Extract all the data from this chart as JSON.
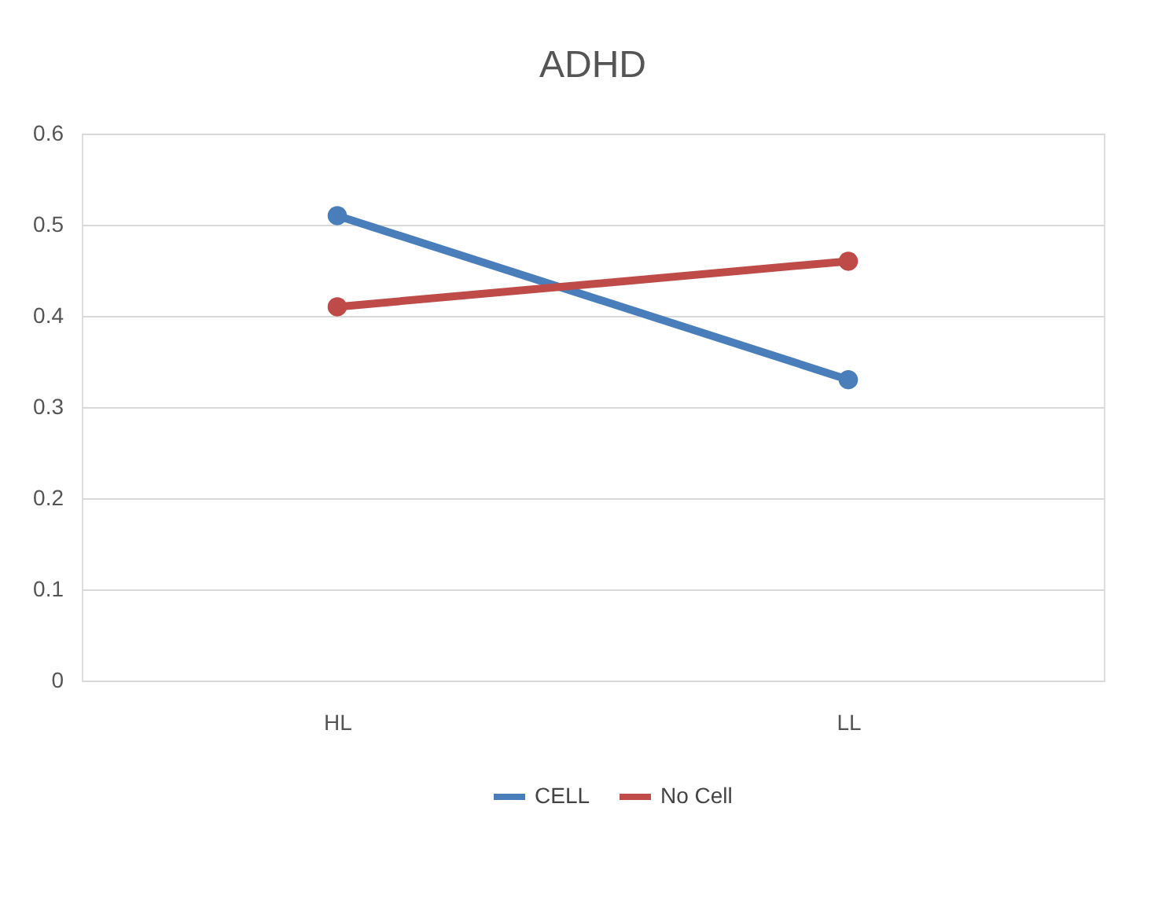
{
  "chart_data": {
    "type": "line",
    "title": "ADHD",
    "categories": [
      "HL",
      "LL"
    ],
    "series": [
      {
        "name": "CELL",
        "color": "#4a7ebb",
        "values": [
          0.51,
          0.33
        ]
      },
      {
        "name": "No Cell",
        "color": "#be4b48",
        "values": [
          0.41,
          0.46
        ]
      }
    ],
    "ylim": [
      0,
      0.6
    ],
    "yticks": [
      0,
      0.1,
      0.2,
      0.3,
      0.4,
      0.5,
      0.6
    ],
    "grid": "y",
    "legend": "bottom",
    "marker": "circle",
    "line_style": "solid"
  }
}
